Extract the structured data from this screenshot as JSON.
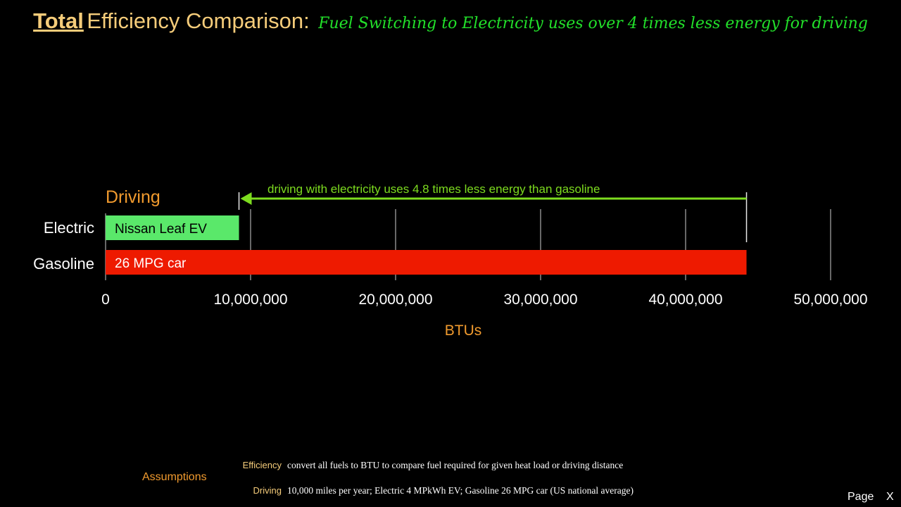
{
  "header": {
    "title_strong": "Total",
    "title_main": "Efficiency Comparison:",
    "subtitle": "Fuel Switching to Electricity uses over 4 times less energy for driving"
  },
  "chart_data": {
    "type": "bar",
    "orientation": "horizontal",
    "section_label": "Driving",
    "categories": [
      "Electric",
      "Gasoline"
    ],
    "bar_labels": [
      "Nissan Leaf EV",
      "26 MPG car"
    ],
    "values": [
      9200000,
      44200000
    ],
    "colors": [
      "#5ae86a",
      "#ee1a00"
    ],
    "xlabel": "BTUs",
    "xlim": [
      0,
      50000000
    ],
    "xticks": [
      0,
      10000000,
      20000000,
      30000000,
      40000000,
      50000000
    ],
    "xtick_labels": [
      "0",
      "10,000,000",
      "20,000,000",
      "30,000,000",
      "40,000,000",
      "50,000,000"
    ],
    "grid": true,
    "annotation": {
      "text": "driving with electricity uses 4.8 times less energy than gasoline",
      "from_value": 44200000,
      "to_value": 9200000,
      "color": "#7ddc1f"
    }
  },
  "footer": {
    "assumptions_label": "Assumptions",
    "rows": [
      {
        "key": "Efficiency",
        "value": "convert all fuels to BTU to compare fuel required for given heat load or driving distance"
      },
      {
        "key": "Driving",
        "value": "10,000 miles per year; Electric 4 MPkWh EV; Gasoline 26 MPG car (US national average)"
      }
    ],
    "page_label": "Page",
    "close_label": "X"
  },
  "colors": {
    "title": "#f5cc7a",
    "subtitle": "#22e02a",
    "axis_label": "#f09a2e",
    "background": "#000000"
  }
}
